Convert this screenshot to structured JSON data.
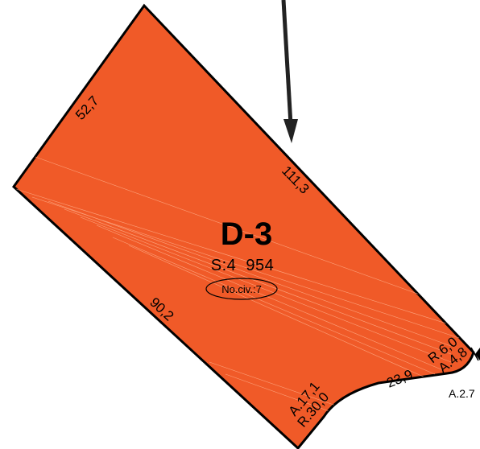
{
  "lot": {
    "id": "D-3",
    "area": "S:4  954",
    "civic": "No.civ.:7",
    "fill_color": "#f05a28"
  },
  "dimensions": {
    "left_edge": "52,7",
    "top_edge": "111,3",
    "bottom_edge": "90,2",
    "arc_left_1": "A.17,1",
    "arc_left_2": "R.30,0",
    "bottom_right": "23,9",
    "arc_right_1": "R.6,0",
    "arc_right_2": "A.4,8",
    "offpage": "A.2.7"
  },
  "arrow": {
    "direction": "down",
    "icon": "north-arrow"
  }
}
